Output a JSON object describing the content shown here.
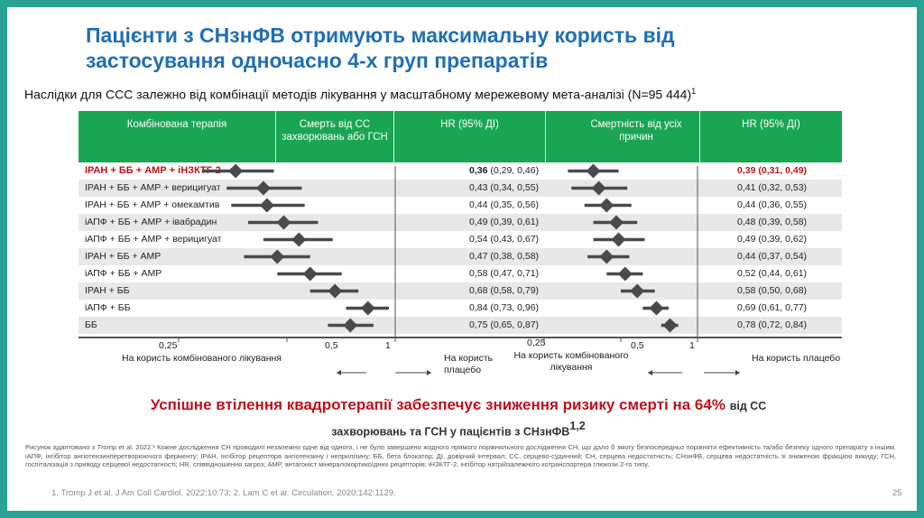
{
  "title": {
    "line1": "Пацієнти з СНзнФВ отримують максимальну користь від",
    "line2": "застосування одночасно 4-х груп препаратів"
  },
  "subtitle": {
    "text": "Наслідки для ССС залежно від комбінації методів лікування у масштабному мережевому мета-аналізі (N=95 444)",
    "ref": "1"
  },
  "table": {
    "headers": [
      "Комбінована терапія",
      "Смерть від СС захворювань або ГСН",
      "HR (95% ДІ)",
      "Смертність від усіх причин",
      "HR (95% ДІ)"
    ],
    "rows": [
      {
        "name": "ІРАН + ББ + АМР + іНЗКТГ-2",
        "hr1_point": "0,36",
        "hr1_ci": "(0,29, 0,46)",
        "hr2": "0,39 (0,31, 0,49)"
      },
      {
        "name": "ІРАН + ББ + АМР + верицигуат",
        "hr1": "0,43 (0,34, 0,55)",
        "hr2": "0,41 (0,32, 0,53)"
      },
      {
        "name": "ІРАН + ББ + АМР + омекамтив",
        "hr1": "0,44 (0,35, 0,56)",
        "hr2": "0,44 (0,36, 0,55)"
      },
      {
        "name": "іАПФ + ББ + АМР + івабрадин",
        "hr1": "0,49 (0,39, 0,61)",
        "hr2": "0,48 (0,39, 0,58)"
      },
      {
        "name": "іАПФ + ББ + АМР + верицигуат",
        "hr1": "0,54 (0,43, 0,67)",
        "hr2": "0,49 (0,39, 0,62)"
      },
      {
        "name": "ІРАН + ББ + АМР",
        "hr1": "0,47 (0,38, 0,58)",
        "hr2": "0,44 (0,37, 0,54)"
      },
      {
        "name": "іАПФ + ББ + АМР",
        "hr1": "0,58 (0,47, 0,71)",
        "hr2": "0,52 (0,44, 0,61)"
      },
      {
        "name": "ІРАН + ББ",
        "hr1": "0,68 (0,58, 0,79)",
        "hr2": "0,58 (0,50, 0,68)"
      },
      {
        "name": "іАПФ + ББ",
        "hr1": "0,84 (0,73, 0,96)",
        "hr2": "0,69 (0,61, 0,77)"
      },
      {
        "name": "ББ",
        "hr1": "0,75 (0,65, 0,87)",
        "hr2": "0,78 (0,72, 0,84)"
      }
    ]
  },
  "chart_data": [
    {
      "type": "scatter",
      "x_scale": "log",
      "xlim": [
        0.25,
        1
      ],
      "tick_labels": [
        "0,25",
        "0,5",
        "1"
      ],
      "point": [
        0.36,
        0.43,
        0.44,
        0.49,
        0.54,
        0.47,
        0.58,
        0.68,
        0.84,
        0.75
      ],
      "lower": [
        0.29,
        0.34,
        0.35,
        0.39,
        0.43,
        0.38,
        0.47,
        0.58,
        0.73,
        0.65
      ],
      "upper": [
        0.46,
        0.55,
        0.56,
        0.61,
        0.67,
        0.58,
        0.71,
        0.79,
        0.96,
        0.87
      ],
      "favours_left": "На користь комбінованого лікування",
      "favours_right": "На користь плацебо",
      "marker_color": "#4a4a4a"
    },
    {
      "type": "scatter",
      "x_scale": "log",
      "xlim": [
        0.25,
        1
      ],
      "tick_labels": [
        "0,25",
        "0,5",
        "1"
      ],
      "point": [
        0.39,
        0.41,
        0.44,
        0.48,
        0.49,
        0.44,
        0.52,
        0.58,
        0.69,
        0.78
      ],
      "lower": [
        0.31,
        0.32,
        0.36,
        0.39,
        0.39,
        0.37,
        0.44,
        0.5,
        0.61,
        0.72
      ],
      "upper": [
        0.49,
        0.53,
        0.55,
        0.58,
        0.62,
        0.54,
        0.61,
        0.68,
        0.77,
        0.84
      ],
      "favours_left": "На користь комбінованого лікування",
      "favours_right": "На користь плацебо",
      "marker_color": "#4a4a4a"
    }
  ],
  "conclusion": {
    "main": "Успішне втілення квадротерапії забезпечує зниження ризику смерті на 64%",
    "tail1": "від СС",
    "tail2": "захворювань та ГСН у пацієнтів з СНзнФВ",
    "refs": "1,2"
  },
  "footnote": "Рисунок адаптовано з Tromp et al. 2022.¹ Кожне дослідження СН проводилі незалежно одне від одного, і не було завершено жодного прямого порівняльного дослідження СН, що дало б змогу безпосередньо порівняти ефективність та/або безпеку одного препарату з іншим. іАПФ, інгібітор ангіотензинперетворюючого ферменту; ІРАН, інгібітор рецептора ангіотензину і неприлізину; ББ, бета блокатор; ДІ, довірчий інтервал; СС, серцево-судинний; СН, серцева недостатність; СНзнФВ, серцева недостатність зі зниженою фракцією викиду; ГСН, госпіталізація з приводу серцевої недостатності; HR, співвідношення загроз; АМР, антагоніст мінералокортикоїдних рецепторів; іНЗКТГ-2, інгібітор натрійзалежного котранспортера глюкози 2-го типу.",
  "references": "1. Tromp J et al. J Am Coll Cardiol. 2022;10:73; 2. Lam C et al. Circulation. 2020;142:1129.",
  "page_number": "25"
}
